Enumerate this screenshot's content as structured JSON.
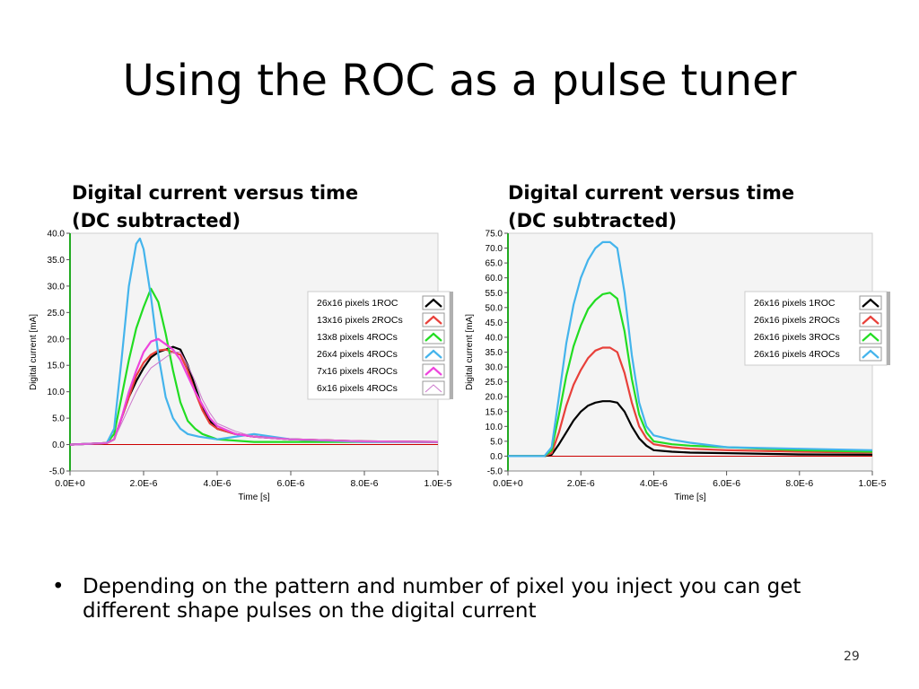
{
  "slide": {
    "title": "Using the ROC as a pulse tuner",
    "bullet": "Depending on the pattern and number of pixel you inject you can get different shape pulses on the digital current",
    "bullet_marker": "•",
    "page_number": "29"
  },
  "chart_data": [
    {
      "type": "line",
      "title": "Digital current versus time\n(DC subtracted)",
      "xlabel": "Time [s]",
      "ylabel": "Digital current [mA]",
      "xlim": [
        0,
        1e-05
      ],
      "ylim": [
        -5,
        40
      ],
      "x_ticks": [
        0,
        2e-06,
        4e-06,
        6e-06,
        8e-06,
        1e-05
      ],
      "x_tick_labels": [
        "0.0E+0",
        "2.0E-6",
        "4.0E-6",
        "6.0E-6",
        "8.0E-6",
        "1.0E-5"
      ],
      "y_ticks": [
        -5,
        0,
        5,
        10,
        15,
        20,
        25,
        30,
        35,
        40
      ],
      "y_tick_labels": [
        "-5.0",
        "0.0",
        "5.0",
        "10.0",
        "15.0",
        "20.0",
        "25.0",
        "30.0",
        "35.0",
        "40.0"
      ],
      "legend_position": "top-right",
      "grid": false,
      "series": [
        {
          "name": "26x16 pixels 1ROC",
          "color": "#000000",
          "x": [
            0,
            1e-06,
            1.2e-06,
            1.4e-06,
            1.6e-06,
            1.8e-06,
            2e-06,
            2.2e-06,
            2.4e-06,
            2.6e-06,
            2.8e-06,
            3e-06,
            3.2e-06,
            3.4e-06,
            3.6e-06,
            3.8e-06,
            4e-06,
            4.5e-06,
            5e-06,
            6e-06,
            8e-06,
            1e-05
          ],
          "y": [
            0,
            0.3,
            1,
            5,
            9,
            12,
            14.5,
            16.5,
            17.5,
            18,
            18.5,
            18,
            15,
            11,
            7,
            4.5,
            3,
            2,
            1.5,
            1,
            0.6,
            0.5
          ]
        },
        {
          "name": "13x16 pixels 2ROCs",
          "color": "#e8403a",
          "x": [
            0,
            1e-06,
            1.2e-06,
            1.4e-06,
            1.6e-06,
            1.8e-06,
            2e-06,
            2.2e-06,
            2.4e-06,
            2.6e-06,
            2.8e-06,
            3e-06,
            3.2e-06,
            3.4e-06,
            3.6e-06,
            3.8e-06,
            4e-06,
            4.5e-06,
            5e-06,
            6e-06,
            8e-06,
            1e-05
          ],
          "y": [
            0,
            0.3,
            1,
            5,
            9,
            13,
            15.5,
            17,
            17.8,
            18,
            17.5,
            17,
            14,
            10,
            6.5,
            4,
            3,
            2,
            1.5,
            1,
            0.6,
            0.5
          ]
        },
        {
          "name": "13x8 pixels 4ROCs",
          "color": "#22dd22",
          "x": [
            0,
            1e-06,
            1.2e-06,
            1.4e-06,
            1.6e-06,
            1.8e-06,
            2e-06,
            2.2e-06,
            2.4e-06,
            2.6e-06,
            2.8e-06,
            3e-06,
            3.2e-06,
            3.4e-06,
            3.6e-06,
            4e-06,
            5e-06,
            6e-06,
            8e-06,
            1e-05
          ],
          "y": [
            0,
            0.3,
            2,
            9,
            16,
            22,
            26,
            29.5,
            27,
            21,
            14,
            8,
            4.5,
            3,
            2,
            1,
            0.5,
            0.5,
            0.5,
            0.5
          ]
        },
        {
          "name": "26x4 pixels 4ROCs",
          "color": "#44b4ec",
          "x": [
            0,
            1e-06,
            1.2e-06,
            1.4e-06,
            1.6e-06,
            1.8e-06,
            1.9e-06,
            2e-06,
            2.2e-06,
            2.4e-06,
            2.6e-06,
            2.8e-06,
            3e-06,
            3.2e-06,
            3.5e-06,
            4e-06,
            5e-06,
            6e-06,
            8e-06,
            1e-05
          ],
          "y": [
            0,
            0.3,
            3,
            16,
            30,
            38,
            39,
            37,
            28,
            17,
            9,
            5,
            3,
            2,
            1.5,
            1,
            2,
            1,
            0.5,
            0.5
          ]
        },
        {
          "name": "7x16 pixels 4ROCs",
          "color": "#ee44dd",
          "x": [
            0,
            1e-06,
            1.2e-06,
            1.4e-06,
            1.6e-06,
            1.8e-06,
            2e-06,
            2.2e-06,
            2.4e-06,
            2.6e-06,
            2.8e-06,
            3e-06,
            3.2e-06,
            3.4e-06,
            3.6e-06,
            3.8e-06,
            4e-06,
            4.5e-06,
            5e-06,
            6e-06,
            8e-06,
            1e-05
          ],
          "y": [
            0,
            0.3,
            1,
            5,
            10,
            14,
            17.5,
            19.5,
            20,
            19,
            18,
            16,
            13,
            10,
            7.5,
            5,
            3.5,
            2,
            1.5,
            1,
            0.6,
            0.5
          ]
        },
        {
          "name": "6x16 pixels 4ROCs",
          "color": "#cc77cc",
          "x": [
            0,
            1e-06,
            1.2e-06,
            1.4e-06,
            1.6e-06,
            1.8e-06,
            2e-06,
            2.2e-06,
            2.4e-06,
            2.6e-06,
            2.8e-06,
            3e-06,
            3.2e-06,
            3.4e-06,
            3.6e-06,
            3.8e-06,
            4e-06,
            4.5e-06,
            5e-06,
            6e-06,
            8e-06,
            1e-05
          ],
          "y": [
            0,
            0.3,
            1,
            4,
            7,
            10,
            12.5,
            14.5,
            15.5,
            16.5,
            17.5,
            17.5,
            15,
            12,
            8.5,
            6,
            4,
            2.5,
            1.5,
            1,
            0.6,
            0.5
          ]
        }
      ],
      "baseline": {
        "y": 0,
        "color": "#cc0000"
      },
      "y_axis_color": "#22aa22"
    },
    {
      "type": "line",
      "title": "Digital current versus time\n(DC subtracted)",
      "xlabel": "Time [s]",
      "ylabel": "Digital current [mA]",
      "xlim": [
        0,
        1e-05
      ],
      "ylim": [
        -5,
        75
      ],
      "x_ticks": [
        0,
        2e-06,
        4e-06,
        6e-06,
        8e-06,
        1e-05
      ],
      "x_tick_labels": [
        "0.0E+0",
        "2.0E-6",
        "4.0E-6",
        "6.0E-6",
        "8.0E-6",
        "1.0E-5"
      ],
      "y_ticks": [
        -5,
        0,
        5,
        10,
        15,
        20,
        25,
        30,
        35,
        40,
        45,
        50,
        55,
        60,
        65,
        70,
        75
      ],
      "y_tick_labels": [
        "-5.0",
        "0.0",
        "5.0",
        "10.0",
        "15.0",
        "20.0",
        "25.0",
        "30.0",
        "35.0",
        "40.0",
        "45.0",
        "50.0",
        "55.0",
        "60.0",
        "65.0",
        "70.0",
        "75.0"
      ],
      "legend_position": "top-right",
      "grid": false,
      "series": [
        {
          "name": "26x16 pixels 1ROC",
          "color": "#000000",
          "x": [
            0,
            1e-06,
            1.2e-06,
            1.4e-06,
            1.6e-06,
            1.8e-06,
            2e-06,
            2.2e-06,
            2.4e-06,
            2.6e-06,
            2.8e-06,
            3e-06,
            3.2e-06,
            3.4e-06,
            3.6e-06,
            3.8e-06,
            4e-06,
            4.5e-06,
            5e-06,
            6e-06,
            8e-06,
            1e-05
          ],
          "y": [
            0,
            0,
            0.5,
            4,
            8,
            12,
            15,
            17,
            18,
            18.5,
            18.5,
            18,
            15,
            10,
            6,
            3.5,
            2,
            1.5,
            1.2,
            1,
            0.6,
            0.5
          ]
        },
        {
          "name": "26x16 pixels 2ROCs",
          "color": "#e8403a",
          "x": [
            0,
            1e-06,
            1.2e-06,
            1.4e-06,
            1.6e-06,
            1.8e-06,
            2e-06,
            2.2e-06,
            2.4e-06,
            2.6e-06,
            2.8e-06,
            3e-06,
            3.2e-06,
            3.4e-06,
            3.6e-06,
            3.8e-06,
            4e-06,
            4.5e-06,
            5e-06,
            6e-06,
            8e-06,
            1e-05
          ],
          "y": [
            0,
            0,
            1,
            8,
            17,
            24,
            29,
            33,
            35.5,
            36.5,
            36.5,
            35,
            28,
            18,
            10,
            6,
            4,
            3,
            2.5,
            2,
            1.5,
            1.2
          ]
        },
        {
          "name": "26x16 pixels 3ROCs",
          "color": "#22dd22",
          "x": [
            0,
            1e-06,
            1.2e-06,
            1.4e-06,
            1.6e-06,
            1.8e-06,
            2e-06,
            2.2e-06,
            2.4e-06,
            2.6e-06,
            2.8e-06,
            3e-06,
            3.2e-06,
            3.4e-06,
            3.6e-06,
            3.8e-06,
            4e-06,
            4.5e-06,
            5e-06,
            6e-06,
            8e-06,
            1e-05
          ],
          "y": [
            0,
            0,
            2,
            14,
            27,
            37,
            44,
            49.5,
            52.5,
            54.5,
            55,
            53,
            42,
            26,
            14,
            8,
            5,
            4,
            3.5,
            3,
            2,
            1.5
          ]
        },
        {
          "name": "26x16 pixels 4ROCs",
          "color": "#44b4ec",
          "x": [
            0,
            1e-06,
            1.2e-06,
            1.4e-06,
            1.6e-06,
            1.8e-06,
            2e-06,
            2.2e-06,
            2.4e-06,
            2.6e-06,
            2.8e-06,
            3e-06,
            3.2e-06,
            3.4e-06,
            3.6e-06,
            3.8e-06,
            4e-06,
            4.5e-06,
            5e-06,
            6e-06,
            8e-06,
            1e-05
          ],
          "y": [
            0,
            0,
            3,
            20,
            38,
            51,
            60,
            66,
            70,
            72,
            72,
            70,
            55,
            34,
            18,
            10,
            7,
            5.5,
            4.5,
            3,
            2.5,
            2
          ]
        }
      ],
      "baseline": {
        "y": 0,
        "color": "#cc0000"
      },
      "y_axis_color": "#22aa22"
    }
  ]
}
